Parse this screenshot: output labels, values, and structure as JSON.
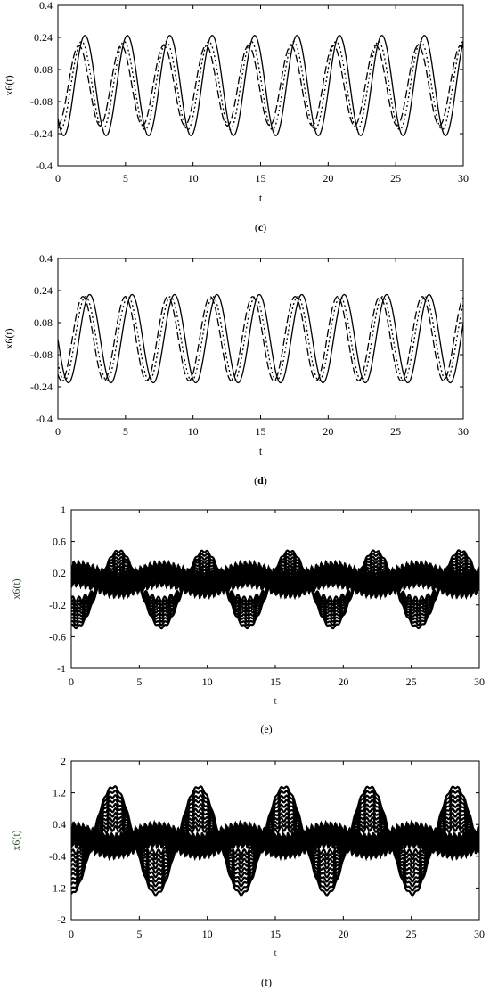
{
  "chart_data": [
    {
      "type": "line",
      "panel_label": "(c)",
      "caption_letter": "c",
      "xlabel": "t",
      "ylabel": "x6(t)",
      "xlim": [
        0,
        30
      ],
      "ylim": [
        -0.4,
        0.4
      ],
      "xticks": [
        0,
        5,
        10,
        15,
        20,
        25,
        30
      ],
      "yticks": [
        0.4,
        0.24,
        0.08,
        -0.08,
        -0.24,
        -0.4
      ],
      "ytick_labels": [
        "0.4",
        "0.24",
        "0.08",
        "-0.08",
        "-0.24",
        "-0.4"
      ],
      "series": [
        {
          "style": "solid",
          "amplitude": 0.25,
          "period": 3.14,
          "phase_peak_t": 2.0
        },
        {
          "style": "dashed",
          "amplitude": 0.2,
          "period": 3.14,
          "phase_peak_t": 1.55
        },
        {
          "style": "dotted",
          "amplitude": 0.22,
          "period": 3.14,
          "phase_peak_t": 1.75
        }
      ]
    },
    {
      "type": "line",
      "panel_label": "(d)",
      "caption_letter": "d",
      "xlabel": "t",
      "ylabel": "x6(t)",
      "xlim": [
        0,
        30
      ],
      "ylim": [
        -0.4,
        0.4
      ],
      "xticks": [
        0,
        5,
        10,
        15,
        20,
        25,
        30
      ],
      "yticks": [
        0.4,
        0.24,
        0.08,
        -0.08,
        -0.24,
        -0.4
      ],
      "ytick_labels": [
        "0.4",
        "0.24",
        "0.08",
        "-0.08",
        "-0.24",
        "-0.4"
      ],
      "series": [
        {
          "style": "solid",
          "amplitude": 0.22,
          "period": 3.14,
          "phase_peak_t": 2.35
        },
        {
          "style": "dashed",
          "amplitude": 0.21,
          "period": 3.14,
          "phase_peak_t": 1.85
        },
        {
          "style": "dotted",
          "amplitude": 0.21,
          "period": 3.14,
          "phase_peak_t": 2.05
        }
      ]
    },
    {
      "type": "line",
      "panel_label": "(e)",
      "caption_letter": "",
      "xlabel": "t",
      "ylabel": "x6(t)",
      "xlim": [
        0,
        30
      ],
      "ylim": [
        -1,
        1
      ],
      "xticks": [
        0,
        5,
        10,
        15,
        20,
        25,
        30
      ],
      "yticks": [
        1,
        0.6,
        0.2,
        -0.2,
        -0.6,
        -1
      ],
      "ytick_labels": [
        "1",
        "0.6",
        "0.2",
        "-0.2",
        "-0.6",
        "-1"
      ],
      "series": [
        {
          "style": "band",
          "amplitude_max": 0.6,
          "amplitude_min": 0.25,
          "period": 6.28,
          "phase_peak_t": 3.5,
          "band_center_max": 0.12,
          "band_count": 9
        }
      ]
    },
    {
      "type": "line",
      "panel_label": "(f)",
      "caption_letter": "",
      "xlabel": "t",
      "ylabel": "x6(t)",
      "xlim": [
        0,
        30
      ],
      "ylim": [
        -2,
        2
      ],
      "xticks": [
        0,
        5,
        10,
        15,
        20,
        25,
        30
      ],
      "yticks": [
        2,
        1.2,
        0.4,
        -0.4,
        -1.2,
        -2
      ],
      "ytick_labels": [
        "2",
        "1.2",
        "0.4",
        "-0.4",
        "-1.2",
        "-2"
      ],
      "series": [
        {
          "style": "band",
          "amplitude_max": 1.35,
          "amplitude_min": 0.3,
          "period": 6.28,
          "phase_peak_t": 3.1,
          "band_center_max": 0.0,
          "band_count": 10
        }
      ]
    }
  ]
}
